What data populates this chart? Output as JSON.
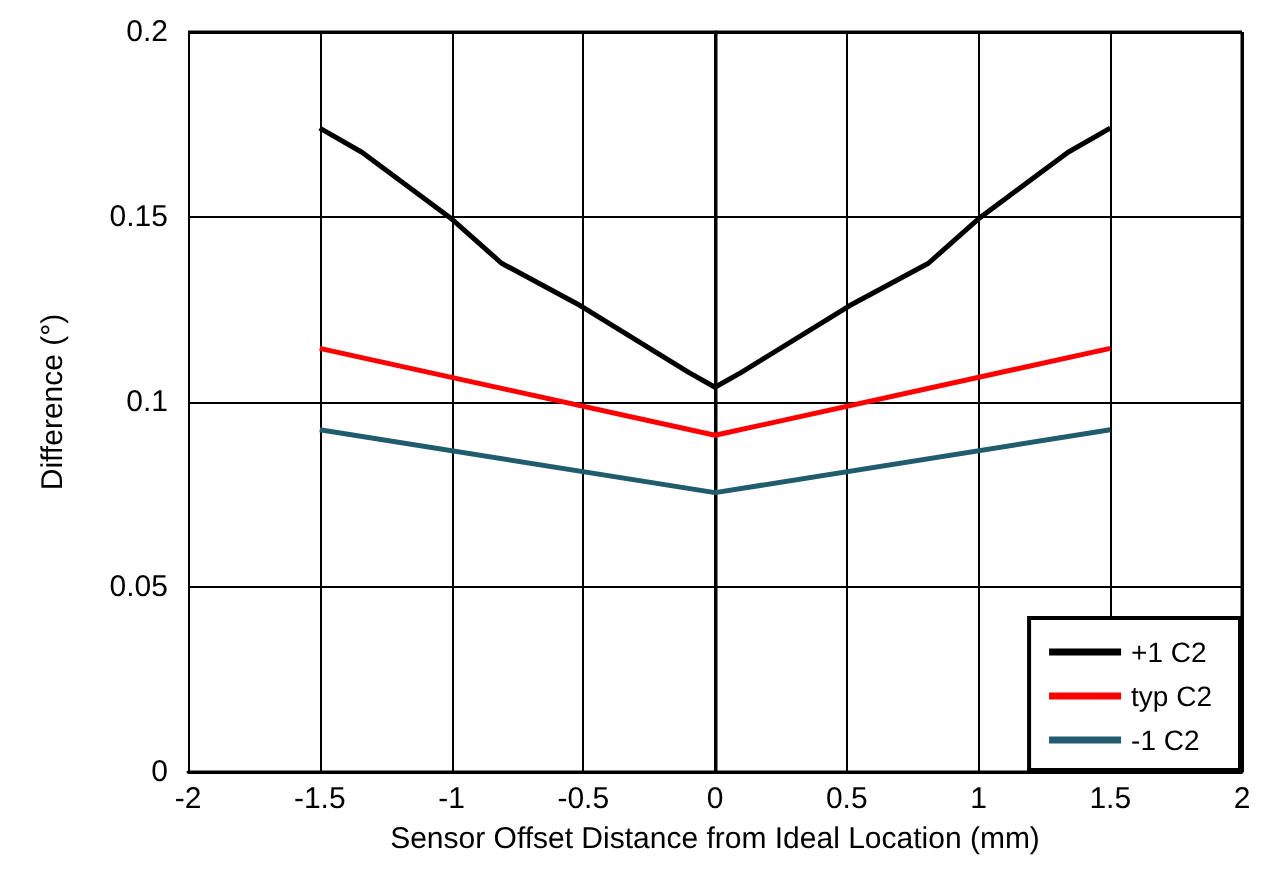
{
  "chart_data": {
    "type": "line",
    "xlabel": "Sensor Offset Distance from Ideal Location (mm)",
    "ylabel": "Difference (°)",
    "xlim": [
      -2,
      2
    ],
    "xticks": [
      -2,
      -1.5,
      -1,
      -0.5,
      0,
      0.5,
      1,
      1.5,
      2
    ],
    "ylim": [
      0,
      0.2
    ],
    "yticks": [
      0,
      0.05,
      0.1,
      0.15,
      0.2
    ],
    "grid": true,
    "legend": "bottom right",
    "marker": "none",
    "line_style": "solid",
    "series": [
      {
        "name": "+1 C2",
        "color": "#000000",
        "x": [
          -1.5,
          -1.34,
          -1,
          -0.81,
          -0.51,
          -0.1,
          0,
          0.1,
          0.51,
          0.81,
          1,
          1.34,
          1.5
        ],
        "values": [
          0.174,
          0.1675,
          0.1495,
          0.1375,
          0.126,
          0.108,
          0.104,
          0.108,
          0.126,
          0.1375,
          0.1495,
          0.1675,
          0.174
        ]
      },
      {
        "name": "typ C2",
        "color": "#ff0000",
        "x": [
          -1.5,
          0,
          1.5
        ],
        "values": [
          0.1145,
          0.091,
          0.1145
        ]
      },
      {
        "name": "-1 C2",
        "color": "#1f5d6e",
        "x": [
          -1.5,
          0,
          1.5
        ],
        "values": [
          0.0925,
          0.0755,
          0.0925
        ]
      }
    ]
  }
}
